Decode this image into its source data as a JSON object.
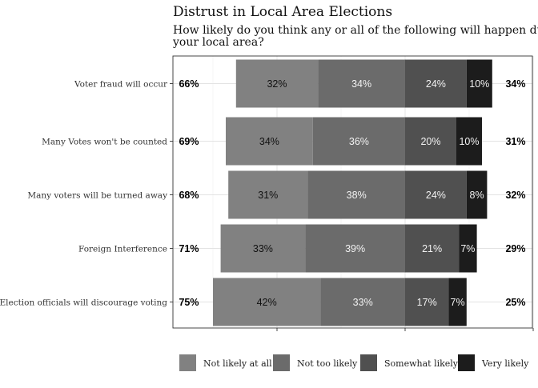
{
  "chart_data": {
    "type": "bar",
    "orientation": "horizontal",
    "stacking": "diverging",
    "title": "Distrust in Local Area Elections",
    "subtitle_lines": [
      "How likely do you think any or all of the following will happen during",
      "your local area?"
    ],
    "categories": [
      "Voter fraud will occur",
      "Many Votes won't be counted",
      "Many voters will be turned away",
      "Foreign Interference",
      "Election officials will discourage voting"
    ],
    "series": [
      {
        "name": "Not likely at all",
        "color": "#818181",
        "text_color": "#111111",
        "values": [
          32,
          34,
          31,
          33,
          42
        ]
      },
      {
        "name": "Not too likely",
        "color": "#6b6b6b",
        "text_color": "#f2f2f2",
        "values": [
          34,
          36,
          38,
          39,
          33
        ]
      },
      {
        "name": "Somewhat likely",
        "color": "#505050",
        "text_color": "#f2f2f2",
        "values": [
          24,
          20,
          24,
          21,
          17
        ]
      },
      {
        "name": "Very likely",
        "color": "#1c1c1c",
        "text_color": "#f2f2f2",
        "values": [
          10,
          10,
          8,
          7,
          7
        ]
      }
    ],
    "value_labels": {
      "series": [
        [
          "32%",
          "34%",
          "31%",
          "33%",
          "42%"
        ],
        [
          "34%",
          "36%",
          "38%",
          "39%",
          "33%"
        ],
        [
          "24%",
          "20%",
          "24%",
          "21%",
          "17%"
        ],
        [
          "10%",
          "10%",
          "8%",
          "7%",
          "7%"
        ]
      ],
      "left_totals": [
        "66%",
        "69%",
        "68%",
        "71%",
        "75%"
      ],
      "right_totals": [
        "34%",
        "31%",
        "32%",
        "29%",
        "25%"
      ]
    },
    "xlim": [
      -100,
      100
    ],
    "xticks": [
      -50,
      0,
      50
    ],
    "grid": true,
    "legend_position": "bottom"
  }
}
